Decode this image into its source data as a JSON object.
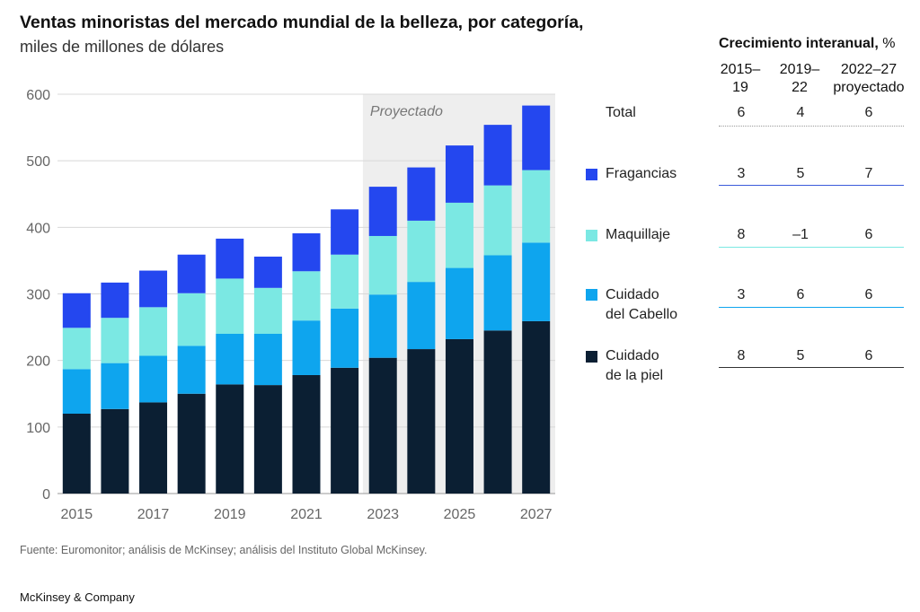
{
  "title": "Ventas minoristas del mercado mundial de la belleza, por categoría,",
  "subtitle": "miles de millones de dólares",
  "source": "Fuente: Euromonitor; análisis de McKinsey; análisis del Instituto Global McKinsey.",
  "brand": "McKinsey & Company",
  "chart_data": {
    "type": "bar",
    "stacked": true,
    "x": [
      2015,
      2016,
      2017,
      2018,
      2019,
      2020,
      2021,
      2022,
      2023,
      2024,
      2025,
      2026,
      2027
    ],
    "x_tick_labels": [
      "2015",
      "2017",
      "2019",
      "2021",
      "2023",
      "2025",
      "2027"
    ],
    "y_ticks": [
      0,
      100,
      200,
      300,
      400,
      500,
      600
    ],
    "ylim": [
      0,
      600
    ],
    "grid": true,
    "projected_label": "Proyectado",
    "projected_from": 2023,
    "series": [
      {
        "name": "Cuidado de la piel",
        "color": "#0b1f33",
        "values": [
          120,
          127,
          137,
          150,
          164,
          163,
          178,
          189,
          204,
          217,
          232,
          245,
          259
        ]
      },
      {
        "name": "Cuidado del Cabello",
        "color": "#0ea5ee",
        "values": [
          67,
          69,
          70,
          72,
          76,
          77,
          82,
          89,
          95,
          101,
          107,
          113,
          118
        ]
      },
      {
        "name": "Maquillaje",
        "color": "#7be8e3",
        "values": [
          62,
          68,
          73,
          79,
          83,
          69,
          74,
          81,
          88,
          92,
          98,
          105,
          109
        ]
      },
      {
        "name": "Fragancias",
        "color": "#2447ef",
        "values": [
          52,
          53,
          55,
          58,
          60,
          47,
          57,
          68,
          74,
          80,
          86,
          91,
          97
        ]
      }
    ]
  },
  "growth_table": {
    "title_bold": "Crecimiento interanual,",
    "title_unit": "%",
    "columns": [
      {
        "line1": "2015–",
        "line2": "19"
      },
      {
        "line1": "2019–",
        "line2": "22"
      },
      {
        "line1": "2022–27",
        "line2": "proyectado"
      }
    ],
    "rows": [
      {
        "line1": "Total",
        "line2": "",
        "values": [
          "6",
          "4",
          "6"
        ],
        "color": "",
        "rule_color": "#999999"
      },
      {
        "line1": "Fragancias",
        "line2": "",
        "values": [
          "3",
          "5",
          "7"
        ],
        "color": "#2447ef",
        "rule_color": "#3b5bdb"
      },
      {
        "line1": "Maquillaje",
        "line2": "",
        "values": [
          "8",
          "–1",
          "6"
        ],
        "color": "#7be8e3",
        "rule_color": "#7be8e3"
      },
      {
        "line1": "Cuidado",
        "line2": "del Cabello",
        "values": [
          "3",
          "6",
          "6"
        ],
        "color": "#0ea5ee",
        "rule_color": "#0ea5ee"
      },
      {
        "line1": "Cuidado",
        "line2": "de la piel",
        "values": [
          "8",
          "5",
          "6"
        ],
        "color": "#0b1f33",
        "rule_color": "#333333"
      }
    ]
  }
}
